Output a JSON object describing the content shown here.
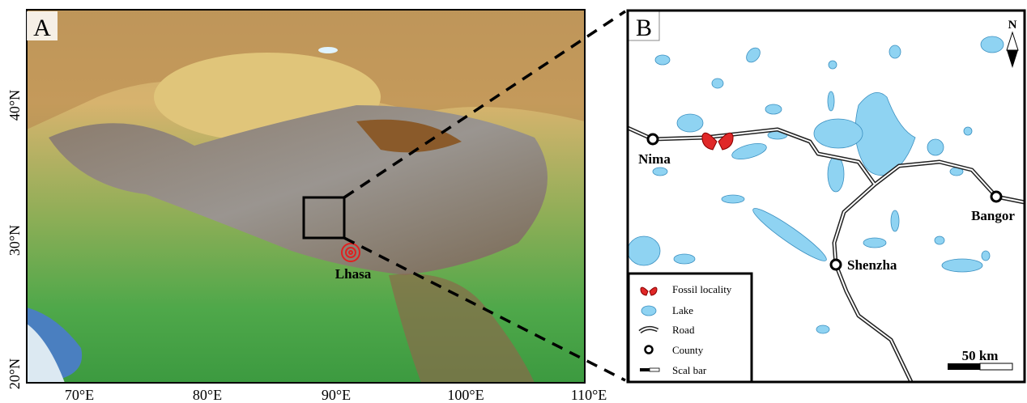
{
  "panel_a": {
    "label": "A",
    "lat_labels": [
      "40°N",
      "30°N",
      "20°N"
    ],
    "lon_labels": [
      "70°E",
      "80°E",
      "90°E",
      "100°E",
      "110°E"
    ],
    "place": "Lhasa"
  },
  "panel_b": {
    "label": "B",
    "north": "N",
    "counties": [
      "Nima",
      "Bangor",
      "Shenzha"
    ],
    "scale": "50 km",
    "legend": [
      "Fossil locality",
      "Lake",
      "Road",
      "County",
      "Scal bar"
    ]
  }
}
